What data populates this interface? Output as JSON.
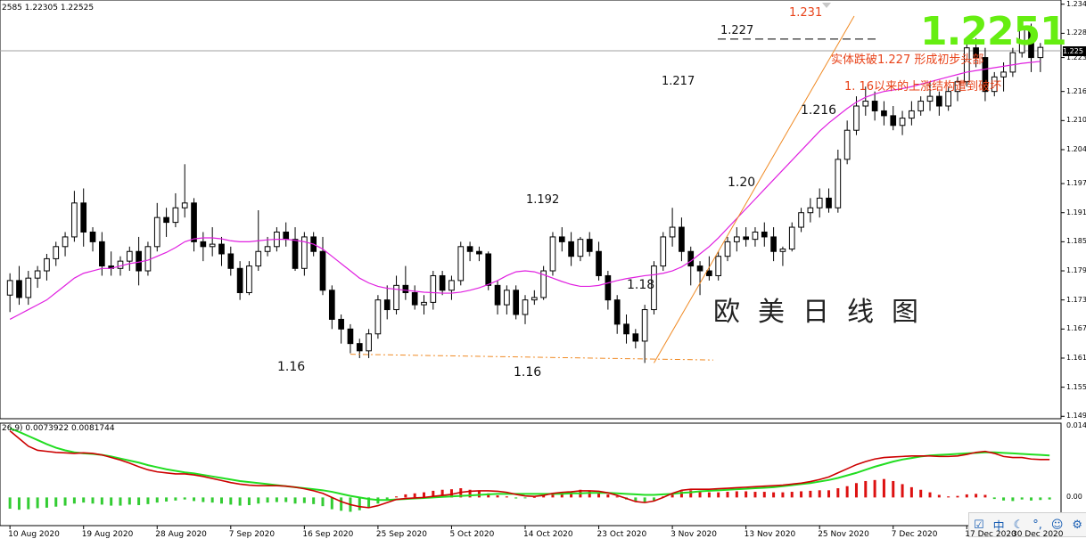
{
  "header": {
    "ohlc_text": "2585 1.22305 1.22525"
  },
  "macd_label": "26,9) 0.0073922 0.0081744",
  "big_price": "1.2251",
  "title": "欧美日线图",
  "annotations": {
    "break_text": "实体跌破1.227 形成初步头部",
    "structure_text": "1. 16以来的上涨结构遭到破坏",
    "peak_1231": "1.231",
    "level_1227": "1.227",
    "level_1217": "1.217",
    "level_1216": "1.216",
    "level_1192": "1.192",
    "level_120": "1.20",
    "level_118": "1.18",
    "low_116_a": "1.16",
    "low_116_b": "1.16"
  },
  "tray": {
    "icons": [
      "checkbox-icon",
      "ime-icon",
      "moon-icon",
      "dot-icon",
      "person-icon",
      "gear-icon"
    ],
    "labels": [
      "☑",
      "中",
      "☾",
      "°,",
      "☺",
      "⚙"
    ]
  },
  "colors": {
    "bull": "#000000",
    "bear": "#000000",
    "ma": "#e020e0",
    "trend": "#f08a24",
    "macd_line": "#cc0000",
    "signal_line": "#22dd22",
    "hist_pos": "#dd1111",
    "hist_neg": "#33cc33",
    "big_price": "#66ee11"
  },
  "chart_data": {
    "type": "candlestick",
    "price_axis": {
      "ticks": [
        "1.234",
        "1.228",
        "1.223",
        "1.216",
        "1.210",
        "1.204",
        "1.197",
        "1.191",
        "1.185",
        "1.179",
        "1.173",
        "1.167",
        "1.161",
        "1.155",
        "1.149"
      ],
      "current": "1.225",
      "ylim": [
        1.1485,
        1.2345
      ]
    },
    "macd_axis": {
      "ticks": [
        "0.014",
        "0.00"
      ],
      "ylim": [
        -0.0055,
        0.0145
      ]
    },
    "x_labels": [
      "10 Aug 2020",
      "19 Aug 2020",
      "28 Aug 2020",
      "7 Sep 2020",
      "16 Sep 2020",
      "25 Sep 2020",
      "5 Oct 2020",
      "14 Oct 2020",
      "23 Oct 2020",
      "3 Nov 2020",
      "13 Nov 2020",
      "25 Nov 2020",
      "7 Dec 2020",
      "17 Dec 2020",
      "30 Dec 2020"
    ],
    "candles": [
      [
        1.174,
        1.1785,
        1.1705,
        1.177
      ],
      [
        1.177,
        1.18,
        1.172,
        1.1735
      ],
      [
        1.1735,
        1.179,
        1.172,
        1.1775
      ],
      [
        1.1775,
        1.18,
        1.1755,
        1.179
      ],
      [
        1.179,
        1.1825,
        1.177,
        1.1815
      ],
      [
        1.1815,
        1.185,
        1.18,
        1.184
      ],
      [
        1.184,
        1.187,
        1.182,
        1.186
      ],
      [
        1.186,
        1.1955,
        1.185,
        1.193
      ],
      [
        1.193,
        1.196,
        1.184,
        1.187
      ],
      [
        1.187,
        1.188,
        1.183,
        1.185
      ],
      [
        1.185,
        1.187,
        1.178,
        1.18
      ],
      [
        1.18,
        1.183,
        1.178,
        1.1795
      ],
      [
        1.1795,
        1.182,
        1.178,
        1.181
      ],
      [
        1.181,
        1.184,
        1.179,
        1.183
      ],
      [
        1.183,
        1.186,
        1.176,
        1.179
      ],
      [
        1.179,
        1.185,
        1.178,
        1.184
      ],
      [
        1.184,
        1.193,
        1.183,
        1.19
      ],
      [
        1.19,
        1.192,
        1.186,
        1.189
      ],
      [
        1.189,
        1.195,
        1.188,
        1.192
      ],
      [
        1.192,
        1.201,
        1.19,
        1.193
      ],
      [
        1.193,
        1.194,
        1.183,
        1.185
      ],
      [
        1.185,
        1.187,
        1.181,
        1.184
      ],
      [
        1.184,
        1.188,
        1.182,
        1.1845
      ],
      [
        1.1845,
        1.186,
        1.18,
        1.1825
      ],
      [
        1.1825,
        1.184,
        1.178,
        1.1795
      ],
      [
        1.1795,
        1.181,
        1.173,
        1.1745
      ],
      [
        1.1745,
        1.181,
        1.174,
        1.18
      ],
      [
        1.18,
        1.1915,
        1.179,
        1.183
      ],
      [
        1.183,
        1.186,
        1.182,
        1.184
      ],
      [
        1.184,
        1.188,
        1.183,
        1.187
      ],
      [
        1.187,
        1.189,
        1.184,
        1.1855
      ],
      [
        1.1855,
        1.188,
        1.179,
        1.1795
      ],
      [
        1.1795,
        1.187,
        1.178,
        1.186
      ],
      [
        1.186,
        1.187,
        1.182,
        1.183
      ],
      [
        1.183,
        1.186,
        1.174,
        1.175
      ],
      [
        1.175,
        1.176,
        1.167,
        1.169
      ],
      [
        1.169,
        1.17,
        1.164,
        1.167
      ],
      [
        1.167,
        1.168,
        1.162,
        1.164
      ],
      [
        1.164,
        1.165,
        1.161,
        1.1625
      ],
      [
        1.1625,
        1.167,
        1.161,
        1.166
      ],
      [
        1.166,
        1.174,
        1.165,
        1.173
      ],
      [
        1.173,
        1.176,
        1.169,
        1.171
      ],
      [
        1.171,
        1.178,
        1.17,
        1.176
      ],
      [
        1.176,
        1.18,
        1.173,
        1.1745
      ],
      [
        1.1745,
        1.176,
        1.171,
        1.172
      ],
      [
        1.172,
        1.174,
        1.17,
        1.1725
      ],
      [
        1.1725,
        1.179,
        1.171,
        1.178
      ],
      [
        1.178,
        1.179,
        1.174,
        1.175
      ],
      [
        1.175,
        1.178,
        1.173,
        1.177
      ],
      [
        1.177,
        1.185,
        1.176,
        1.184
      ],
      [
        1.184,
        1.185,
        1.181,
        1.183
      ],
      [
        1.183,
        1.184,
        1.181,
        1.1825
      ],
      [
        1.1825,
        1.183,
        1.175,
        1.176
      ],
      [
        1.176,
        1.177,
        1.17,
        1.172
      ],
      [
        1.172,
        1.176,
        1.17,
        1.175
      ],
      [
        1.175,
        1.176,
        1.169,
        1.17
      ],
      [
        1.17,
        1.174,
        1.168,
        1.173
      ],
      [
        1.173,
        1.175,
        1.172,
        1.1735
      ],
      [
        1.1735,
        1.18,
        1.173,
        1.179
      ],
      [
        1.179,
        1.187,
        1.178,
        1.186
      ],
      [
        1.186,
        1.188,
        1.183,
        1.185
      ],
      [
        1.185,
        1.187,
        1.18,
        1.182
      ],
      [
        1.182,
        1.186,
        1.181,
        1.1855
      ],
      [
        1.1855,
        1.187,
        1.182,
        1.183
      ],
      [
        1.183,
        1.185,
        1.177,
        1.178
      ],
      [
        1.178,
        1.179,
        1.171,
        1.173
      ],
      [
        1.173,
        1.174,
        1.166,
        1.168
      ],
      [
        1.168,
        1.17,
        1.164,
        1.166
      ],
      [
        1.166,
        1.167,
        1.163,
        1.1645
      ],
      [
        1.1645,
        1.172,
        1.16,
        1.171
      ],
      [
        1.171,
        1.181,
        1.17,
        1.18
      ],
      [
        1.18,
        1.187,
        1.179,
        1.186
      ],
      [
        1.186,
        1.192,
        1.184,
        1.188
      ],
      [
        1.188,
        1.19,
        1.181,
        1.183
      ],
      [
        1.183,
        1.184,
        1.176,
        1.18
      ],
      [
        1.18,
        1.181,
        1.174,
        1.179
      ],
      [
        1.179,
        1.182,
        1.177,
        1.178
      ],
      [
        1.178,
        1.183,
        1.177,
        1.182
      ],
      [
        1.182,
        1.186,
        1.181,
        1.185
      ],
      [
        1.185,
        1.188,
        1.183,
        1.186
      ],
      [
        1.186,
        1.188,
        1.184,
        1.1855
      ],
      [
        1.1855,
        1.188,
        1.184,
        1.187
      ],
      [
        1.187,
        1.189,
        1.184,
        1.186
      ],
      [
        1.186,
        1.188,
        1.181,
        1.183
      ],
      [
        1.183,
        1.184,
        1.18,
        1.1835
      ],
      [
        1.1835,
        1.189,
        1.183,
        1.188
      ],
      [
        1.188,
        1.192,
        1.187,
        1.191
      ],
      [
        1.191,
        1.194,
        1.189,
        1.192
      ],
      [
        1.192,
        1.196,
        1.19,
        1.194
      ],
      [
        1.194,
        1.196,
        1.191,
        1.192
      ],
      [
        1.192,
        1.204,
        1.191,
        1.202
      ],
      [
        1.202,
        1.21,
        1.201,
        1.208
      ],
      [
        1.208,
        1.215,
        1.207,
        1.213
      ],
      [
        1.213,
        1.217,
        1.211,
        1.214
      ],
      [
        1.214,
        1.216,
        1.21,
        1.212
      ],
      [
        1.212,
        1.214,
        1.209,
        1.211
      ],
      [
        1.211,
        1.213,
        1.208,
        1.209
      ],
      [
        1.209,
        1.212,
        1.207,
        1.2105
      ],
      [
        1.2105,
        1.214,
        1.209,
        1.212
      ],
      [
        1.212,
        1.215,
        1.211,
        1.214
      ],
      [
        1.214,
        1.218,
        1.212,
        1.215
      ],
      [
        1.215,
        1.216,
        1.211,
        1.213
      ],
      [
        1.213,
        1.217,
        1.212,
        1.216
      ],
      [
        1.216,
        1.219,
        1.214,
        1.218
      ],
      [
        1.218,
        1.226,
        1.217,
        1.225
      ],
      [
        1.225,
        1.227,
        1.221,
        1.223
      ],
      [
        1.223,
        1.225,
        1.214,
        1.216
      ],
      [
        1.216,
        1.22,
        1.215,
        1.219
      ],
      [
        1.219,
        1.222,
        1.216,
        1.22
      ],
      [
        1.22,
        1.225,
        1.219,
        1.224
      ],
      [
        1.224,
        1.231,
        1.223,
        1.229
      ],
      [
        1.229,
        1.23,
        1.22,
        1.223
      ],
      [
        1.223,
        1.226,
        1.22,
        1.2251
      ]
    ],
    "ma": [
      1.169,
      1.17,
      1.171,
      1.172,
      1.173,
      1.1745,
      1.176,
      1.1775,
      1.1785,
      1.179,
      1.1795,
      1.1795,
      1.18,
      1.1805,
      1.1808,
      1.1812,
      1.182,
      1.1828,
      1.1838,
      1.185,
      1.1856,
      1.1858,
      1.1858,
      1.1856,
      1.1852,
      1.185,
      1.185,
      1.1852,
      1.1854,
      1.1855,
      1.1855,
      1.1853,
      1.185,
      1.1845,
      1.1835,
      1.182,
      1.1805,
      1.179,
      1.1775,
      1.1765,
      1.1758,
      1.1754,
      1.1752,
      1.175,
      1.1748,
      1.1746,
      1.1745,
      1.1744,
      1.1744,
      1.1746,
      1.175,
      1.1755,
      1.1762,
      1.177,
      1.178,
      1.1788,
      1.179,
      1.1788,
      1.1782,
      1.1775,
      1.1768,
      1.1762,
      1.1758,
      1.1758,
      1.176,
      1.1765,
      1.177,
      1.1774,
      1.1777,
      1.178,
      1.1782,
      1.1785,
      1.179,
      1.1798,
      1.181,
      1.1825,
      1.184,
      1.1858,
      1.1878,
      1.1898,
      1.1918,
      1.1938,
      1.1958,
      1.1978,
      1.1998,
      1.2018,
      1.2038,
      1.2058,
      1.2078,
      1.2095,
      1.211,
      1.2125,
      1.2138,
      1.2148,
      1.2155,
      1.216,
      1.2163,
      1.2166,
      1.217,
      1.2175,
      1.218,
      1.2185,
      1.219,
      1.2195,
      1.22,
      1.2203,
      1.2206,
      1.2209,
      1.2212,
      1.2215,
      1.2218,
      1.222,
      1.2222
    ],
    "macd_hist": [
      -0.0022,
      -0.0024,
      -0.0023,
      -0.0021,
      -0.002,
      -0.0018,
      -0.0016,
      -0.0012,
      -0.001,
      -0.0012,
      -0.0014,
      -0.0016,
      -0.0016,
      -0.0014,
      -0.0015,
      -0.0013,
      -0.001,
      -0.0008,
      -0.0006,
      -0.0004,
      -0.0007,
      -0.0009,
      -0.001,
      -0.0012,
      -0.0014,
      -0.0016,
      -0.0015,
      -0.0012,
      -0.001,
      -0.0009,
      -0.0009,
      -0.0012,
      -0.0011,
      -0.0013,
      -0.0017,
      -0.0023,
      -0.0026,
      -0.0028,
      -0.0025,
      -0.002,
      -0.0012,
      -0.0006,
      0.0002,
      0.0006,
      0.0008,
      0.001,
      0.0013,
      0.0015,
      0.0016,
      0.0018,
      0.0015,
      0.0012,
      0.0008,
      0.0004,
      0.0002,
      -0.0002,
      -0.0001,
      0.0001,
      0.0005,
      0.0009,
      0.0011,
      0.0012,
      0.0015,
      0.0013,
      0.001,
      0.0006,
      0.0002,
      -0.0004,
      -0.0008,
      -0.001,
      -0.0006,
      0.0002,
      0.0008,
      0.0012,
      0.0014,
      0.0012,
      0.001,
      0.001,
      0.0011,
      0.0012,
      0.0012,
      0.0011,
      0.0011,
      0.001,
      0.001,
      0.0011,
      0.0012,
      0.0013,
      0.0014,
      0.0014,
      0.0018,
      0.0022,
      0.0028,
      0.0032,
      0.0034,
      0.0036,
      0.0032,
      0.0026,
      0.002,
      0.0015,
      0.001,
      0.0005,
      0.0002,
      0.0003,
      0.0006,
      0.0007,
      0.0005,
      -0.0003,
      -0.0006,
      -0.0007,
      -0.0004,
      -0.0006,
      -0.0005,
      -0.0004
    ],
    "macd_line": [
      0.013,
      0.0115,
      0.01,
      0.0092,
      0.009,
      0.0088,
      0.0087,
      0.0086,
      0.0087,
      0.0086,
      0.0083,
      0.0078,
      0.0073,
      0.0067,
      0.006,
      0.0054,
      0.005,
      0.0048,
      0.0046,
      0.0046,
      0.0044,
      0.0041,
      0.0037,
      0.0033,
      0.0029,
      0.0026,
      0.0024,
      0.0023,
      0.0023,
      0.0023,
      0.0022,
      0.002,
      0.0017,
      0.0013,
      0.0008,
      0.0,
      -0.0008,
      -0.0014,
      -0.0018,
      -0.002,
      -0.0016,
      -0.001,
      -0.0004,
      -0.0002,
      -0.0001,
      0.0,
      0.0002,
      0.0004,
      0.0006,
      0.001,
      0.0012,
      0.0013,
      0.0013,
      0.0012,
      0.001,
      0.0006,
      0.0003,
      0.0002,
      0.0004,
      0.0008,
      0.001,
      0.0011,
      0.0013,
      0.0013,
      0.0012,
      0.0009,
      0.0004,
      -0.0002,
      -0.0008,
      -0.001,
      -0.0007,
      0.0,
      0.0008,
      0.0014,
      0.0016,
      0.0016,
      0.0016,
      0.0017,
      0.0018,
      0.0019,
      0.002,
      0.0021,
      0.0022,
      0.0023,
      0.0024,
      0.0026,
      0.0028,
      0.0031,
      0.0035,
      0.004,
      0.0048,
      0.0056,
      0.0064,
      0.007,
      0.0075,
      0.0078,
      0.0079,
      0.008,
      0.0081,
      0.0081,
      0.0081,
      0.008,
      0.008,
      0.0081,
      0.0084,
      0.0088,
      0.009,
      0.0086,
      0.008,
      0.0078,
      0.0078,
      0.0075,
      0.0074,
      0.0074
    ],
    "signal_line": [
      0.0135,
      0.0128,
      0.012,
      0.0112,
      0.0104,
      0.0097,
      0.0092,
      0.0088,
      0.0086,
      0.0085,
      0.0083,
      0.008,
      0.0076,
      0.0072,
      0.0068,
      0.0063,
      0.0059,
      0.0055,
      0.0052,
      0.0049,
      0.0047,
      0.0044,
      0.0041,
      0.0038,
      0.0035,
      0.0032,
      0.003,
      0.0028,
      0.0026,
      0.0024,
      0.0022,
      0.002,
      0.0018,
      0.0016,
      0.0014,
      0.0011,
      0.0007,
      0.0003,
      0.0,
      -0.0003,
      -0.0005,
      -0.0005,
      -0.0004,
      -0.0003,
      -0.0002,
      -0.0001,
      0.0,
      0.0001,
      0.0002,
      0.0003,
      0.0004,
      0.0005,
      0.0006,
      0.0007,
      0.0007,
      0.0007,
      0.0007,
      0.0007,
      0.0007,
      0.0007,
      0.0007,
      0.0008,
      0.0008,
      0.0009,
      0.0009,
      0.0009,
      0.0008,
      0.0007,
      0.0006,
      0.0005,
      0.0005,
      0.0006,
      0.0007,
      0.0009,
      0.001,
      0.0012,
      0.0013,
      0.0014,
      0.0015,
      0.0016,
      0.0017,
      0.0018,
      0.0019,
      0.002,
      0.0022,
      0.0024,
      0.0026,
      0.0028,
      0.0031,
      0.0034,
      0.0038,
      0.0043,
      0.0048,
      0.0054,
      0.006,
      0.0065,
      0.007,
      0.0074,
      0.0077,
      0.008,
      0.0082,
      0.0083,
      0.0084,
      0.0085,
      0.0086,
      0.0087,
      0.0088,
      0.0088,
      0.0087,
      0.0086,
      0.0085,
      0.0084,
      0.0083,
      0.0082
    ]
  }
}
